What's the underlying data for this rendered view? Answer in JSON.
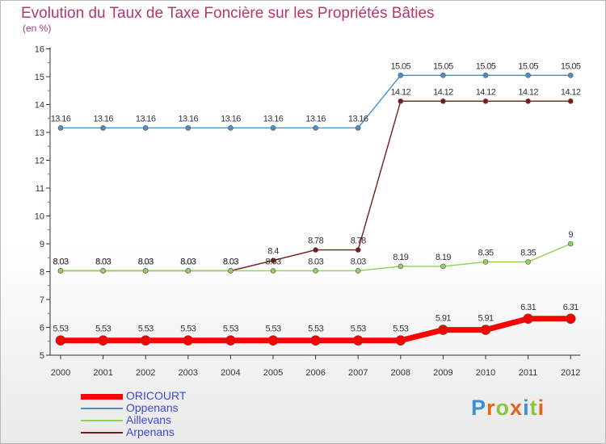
{
  "title": "Evolution du Taux de Taxe Foncière sur les Propriétés Bâties",
  "unit_label": "(en %)",
  "logo": {
    "text": "Proxiti"
  },
  "chart_data": {
    "type": "line",
    "title": "Evolution du Taux de Taxe Foncière sur les Propriétés Bâties",
    "ylabel": "(en %)",
    "xlabel": "",
    "categories": [
      "2000",
      "2001",
      "2002",
      "2003",
      "2004",
      "2005",
      "2006",
      "2007",
      "2008",
      "2009",
      "2010",
      "2011",
      "2012"
    ],
    "ylim": [
      5,
      16
    ],
    "yticks": [
      5,
      6,
      7,
      8,
      9,
      10,
      11,
      12,
      13,
      14,
      15,
      16
    ],
    "grid": false,
    "legend_position": "bottom-left",
    "series": [
      {
        "name": "Oppenans",
        "color": "#4a90c8",
        "line_width": 1.4,
        "point_size": 6,
        "values": [
          13.16,
          13.16,
          13.16,
          13.16,
          13.16,
          13.16,
          13.16,
          13.16,
          15.05,
          15.05,
          15.05,
          15.05,
          15.05
        ],
        "labels": [
          "13.16",
          "13.16",
          "13.16",
          "13.16",
          "13.16",
          "13.16",
          "13.16",
          "13.16",
          "15.05",
          "15.05",
          "15.05",
          "15.05",
          "15.05"
        ]
      },
      {
        "name": "Arpenans",
        "color": "#7a1a1a",
        "line_width": 1.4,
        "point_size": 6,
        "values": [
          8.03,
          8.03,
          8.03,
          8.03,
          8.03,
          8.4,
          8.78,
          8.78,
          14.12,
          14.12,
          14.12,
          14.12,
          14.12
        ],
        "labels": [
          "8.03",
          "8.03",
          "8.03",
          "8.03",
          "8.03",
          "8.4",
          "8.78",
          "8.78",
          "14.12",
          "14.12",
          "14.12",
          "14.12",
          "14.12"
        ]
      },
      {
        "name": "Aillevans",
        "color": "#8fd15a",
        "line_width": 1.4,
        "point_size": 6,
        "values": [
          8.03,
          8.03,
          8.03,
          8.03,
          8.03,
          8.03,
          8.03,
          8.03,
          8.19,
          8.19,
          8.35,
          8.35,
          9
        ],
        "labels": [
          "8.03",
          "8.03",
          "8.03",
          "8.03",
          "8.03",
          "8.03",
          "8.03",
          "8.03",
          "8.19",
          "8.19",
          "8.35",
          "8.35",
          "9"
        ]
      },
      {
        "name": "ORICOURT",
        "color": "#ff0000",
        "line_width": 7,
        "point_size": 12,
        "values": [
          5.53,
          5.53,
          5.53,
          5.53,
          5.53,
          5.53,
          5.53,
          5.53,
          5.53,
          5.91,
          5.91,
          6.31,
          6.31
        ],
        "labels": [
          "5.53",
          "5.53",
          "5.53",
          "5.53",
          "5.53",
          "5.53",
          "5.53",
          "5.53",
          "5.53",
          "5.91",
          "5.91",
          "6.31",
          "6.31"
        ]
      }
    ],
    "legend": [
      "ORICOURT",
      "Oppenans",
      "Aillevans",
      "Arpenans"
    ]
  }
}
